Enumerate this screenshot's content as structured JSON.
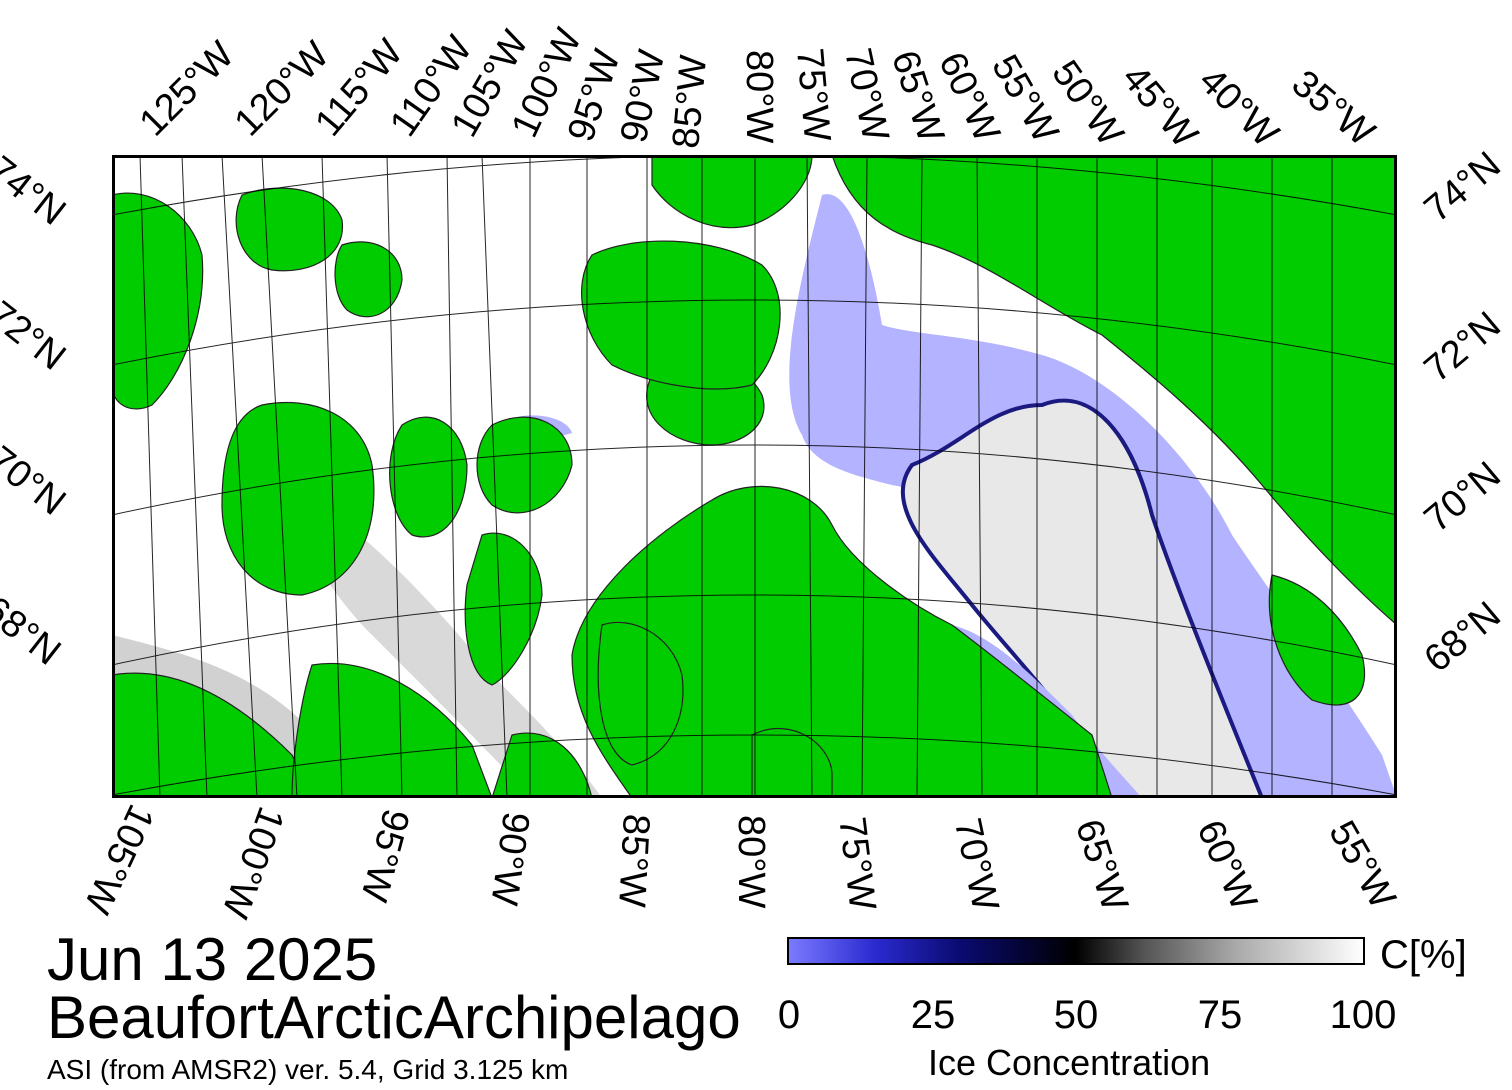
{
  "map": {
    "date": "Jun 13 2025",
    "region": "BeaufortArcticArchipelago",
    "source": "ASI (from AMSR2) ver. 5.4,  Grid 3.125 km",
    "colors": {
      "land": "#00cc00",
      "open_water": "#b3b3ff",
      "ice_full": "#ffffff",
      "ice_mid": "#000000",
      "ice_low": "#2a2ad0",
      "graticule": "#000000",
      "coastline": "#333333"
    },
    "top_lon_labels": [
      "125°W",
      "120°W",
      "115°W",
      "110°W",
      "105°W",
      "100°W",
      "95°W",
      "90°W",
      "85°W",
      "80°W",
      "75°W",
      "70°W",
      "65°W",
      "60°W",
      "55°W",
      "50°W",
      "45°W",
      "40°W",
      "35°W"
    ],
    "bottom_lon_labels": [
      "105°W",
      "100°W",
      "95°W",
      "90°W",
      "85°W",
      "80°W",
      "75°W",
      "70°W",
      "65°W",
      "60°W",
      "55°W"
    ],
    "left_lat_labels": [
      "74°N",
      "72°N",
      "70°N",
      "68°N"
    ],
    "right_lat_labels": [
      "74°N",
      "72°N",
      "70°N",
      "68°N"
    ]
  },
  "colorbar": {
    "unit": "C[%]",
    "title": "Ice Concentration",
    "ticks": [
      "0",
      "25",
      "50",
      "75",
      "100"
    ],
    "range": [
      0,
      100
    ]
  }
}
